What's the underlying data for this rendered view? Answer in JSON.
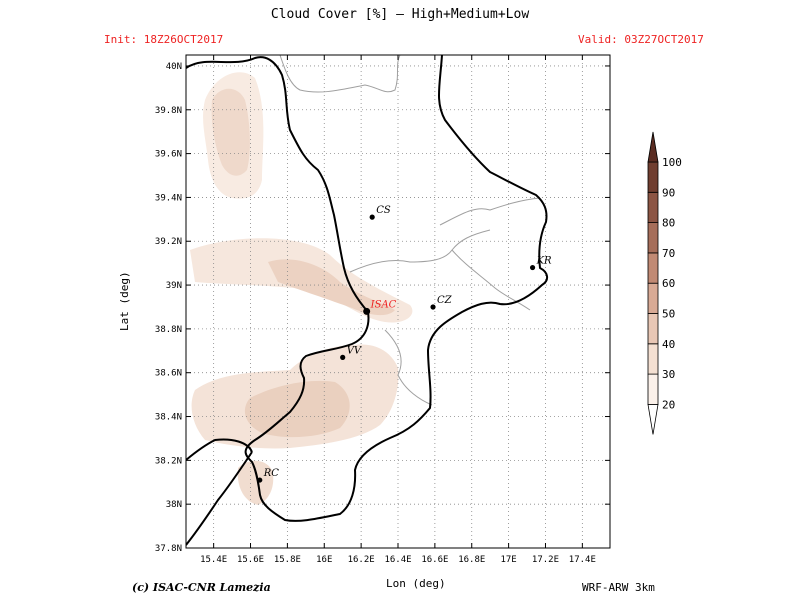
{
  "header": {
    "title": "Cloud Cover [%] — High+Medium+Low",
    "init": "Init: 18Z26OCT2017",
    "valid": "Valid: 03Z27OCT2017"
  },
  "axes": {
    "xlabel": "Lon (deg)",
    "ylabel": "Lat (deg)",
    "lon_range": [
      15.25,
      17.55
    ],
    "lat_range": [
      37.8,
      40.05
    ],
    "lon_ticks": [
      "15.4E",
      "15.6E",
      "15.8E",
      "16E",
      "16.2E",
      "16.4E",
      "16.6E",
      "16.8E",
      "17E",
      "17.2E",
      "17.4E"
    ],
    "lat_ticks": [
      "37.8N",
      "38N",
      "38.2N",
      "38.4N",
      "38.6N",
      "38.8N",
      "39N",
      "39.2N",
      "39.4N",
      "39.6N",
      "39.8N",
      "40N"
    ],
    "grid": true
  },
  "colorbar": {
    "labels": [
      "20",
      "30",
      "40",
      "50",
      "60",
      "70",
      "80",
      "90",
      "100"
    ],
    "colors": [
      "#ffffff",
      "#fbf1ea",
      "#f4e0d2",
      "#e8c7b5",
      "#d8aa95",
      "#c18a74",
      "#a66e5a",
      "#8c5544",
      "#703e30",
      "#5a2c22"
    ]
  },
  "cities": [
    {
      "code": "CS",
      "lon": 16.26,
      "lat": 39.31,
      "highlight": false
    },
    {
      "code": "KR",
      "lon": 17.13,
      "lat": 39.08,
      "highlight": false
    },
    {
      "code": "ISAC",
      "lon": 16.23,
      "lat": 38.88,
      "highlight": true
    },
    {
      "code": "CZ",
      "lon": 16.59,
      "lat": 38.9,
      "highlight": false
    },
    {
      "code": "VV",
      "lon": 16.1,
      "lat": 38.67,
      "highlight": false
    },
    {
      "code": "RC",
      "lon": 15.65,
      "lat": 38.11,
      "highlight": false
    }
  ],
  "colors": {
    "highlight": "#ee2222",
    "text": "#000000"
  },
  "footer": {
    "copyright": "(c) ISAC-CNR Lamezia",
    "model": "WRF-ARW 3km"
  }
}
